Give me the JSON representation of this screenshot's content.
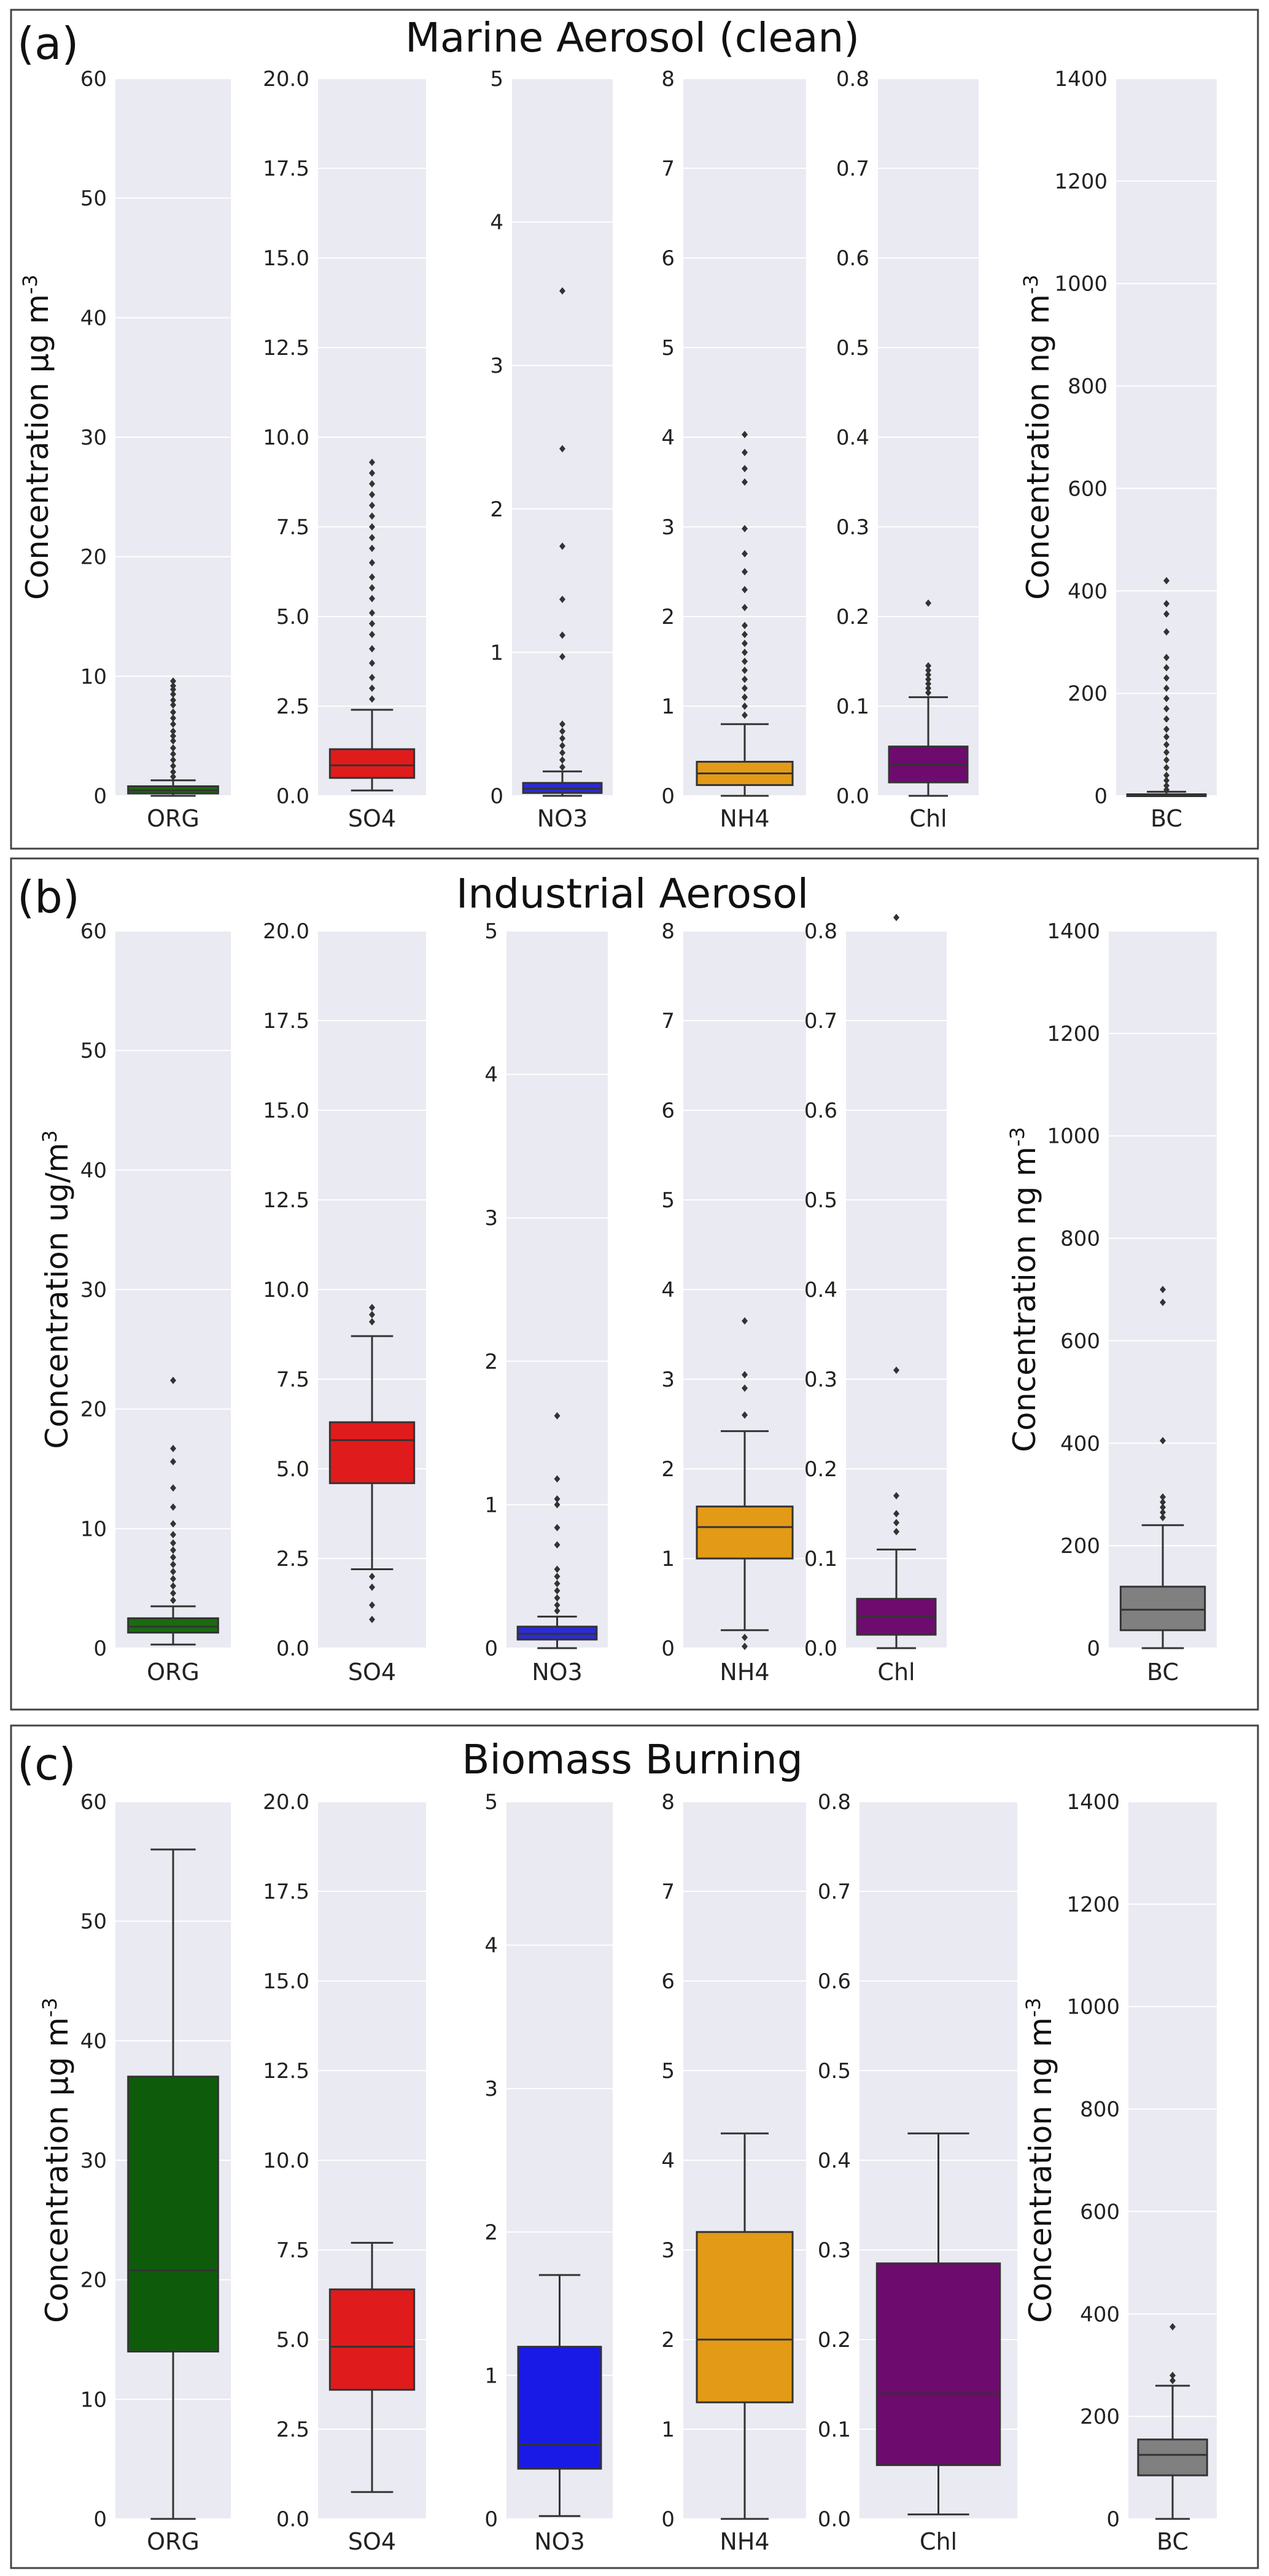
{
  "chart_data": [
    {
      "type": "box",
      "panel_letter": "(a)",
      "title": "Marine Aerosol (clean)",
      "ylabel_mass": "Concentration µg m",
      "ylabel_mass_sup": "-3",
      "ylabel_bc": "Concentration ng m",
      "ylabel_bc_sup": "-3",
      "subplots": [
        {
          "category": "ORG",
          "color": "#1b6b10",
          "ylim": [
            0,
            60
          ],
          "ticks": [
            "0",
            "10",
            "20",
            "30",
            "40",
            "50",
            "60"
          ],
          "box": {
            "whisker_low": 0,
            "q1": 0.2,
            "median": 0.45,
            "q3": 0.8,
            "whisker_high": 1.3
          },
          "outliers": [
            1.6,
            2.0,
            2.5,
            3.0,
            3.5,
            4.0,
            4.6,
            5.0,
            5.4,
            6.0,
            6.5,
            7.0,
            7.6,
            8.0,
            8.5,
            8.9,
            9.2,
            9.6
          ]
        },
        {
          "category": "SO4",
          "color": "#e01b1b",
          "ylim": [
            0,
            20
          ],
          "ticks": [
            "0.0",
            "2.5",
            "5.0",
            "7.5",
            "10.0",
            "12.5",
            "15.0",
            "17.5",
            "20.0"
          ],
          "box": {
            "whisker_low": 0.15,
            "q1": 0.5,
            "median": 0.85,
            "q3": 1.3,
            "whisker_high": 2.4
          },
          "outliers": [
            2.7,
            3.0,
            3.3,
            3.7,
            4.1,
            4.5,
            4.8,
            5.1,
            5.5,
            5.8,
            6.1,
            6.5,
            6.9,
            7.2,
            7.5,
            7.8,
            8.1,
            8.4,
            8.7,
            9.0,
            9.3
          ]
        },
        {
          "category": "NO3",
          "color": "#2b2bd6",
          "ylim": [
            0,
            5
          ],
          "ticks": [
            "0",
            "1",
            "2",
            "3",
            "4",
            "5"
          ],
          "box": {
            "whisker_low": 0.0,
            "q1": 0.02,
            "median": 0.05,
            "q3": 0.09,
            "whisker_high": 0.17
          },
          "outliers": [
            0.2,
            0.25,
            0.3,
            0.35,
            0.4,
            0.45,
            0.5,
            0.97,
            1.12,
            1.37,
            1.74,
            2.42,
            3.52
          ]
        },
        {
          "category": "NH4",
          "color": "#e39a17",
          "ylim": [
            0,
            8
          ],
          "ticks": [
            "0",
            "1",
            "2",
            "3",
            "4",
            "5",
            "6",
            "7",
            "8"
          ],
          "box": {
            "whisker_low": 0.0,
            "q1": 0.12,
            "median": 0.25,
            "q3": 0.38,
            "whisker_high": 0.8
          },
          "outliers": [
            0.9,
            1.0,
            1.1,
            1.2,
            1.3,
            1.4,
            1.5,
            1.6,
            1.7,
            1.8,
            1.9,
            2.1,
            2.3,
            2.5,
            2.7,
            2.98,
            3.5,
            3.65,
            3.83,
            4.03
          ]
        },
        {
          "category": "Chl",
          "color": "#6e0b6e",
          "ylim": [
            0,
            0.8
          ],
          "ticks": [
            "0.0",
            "0.1",
            "0.2",
            "0.3",
            "0.4",
            "0.5",
            "0.6",
            "0.7",
            "0.8"
          ],
          "box": {
            "whisker_low": 0.0,
            "q1": 0.015,
            "median": 0.035,
            "q3": 0.055,
            "whisker_high": 0.11
          },
          "outliers": [
            0.115,
            0.12,
            0.125,
            0.13,
            0.135,
            0.14,
            0.145,
            0.215
          ]
        },
        {
          "category": "BC",
          "color": "#808080",
          "ylim": [
            0,
            1400
          ],
          "ticks": [
            "0",
            "200",
            "400",
            "600",
            "800",
            "1000",
            "1200",
            "1400"
          ],
          "box": {
            "whisker_low": 0,
            "q1": 0,
            "median": 1,
            "q3": 3,
            "whisker_high": 8
          },
          "outliers": [
            12,
            20,
            30,
            40,
            55,
            70,
            85,
            100,
            115,
            130,
            150,
            170,
            190,
            210,
            230,
            250,
            270,
            320,
            355,
            375,
            420
          ]
        }
      ]
    },
    {
      "type": "box",
      "panel_letter": "(b)",
      "title": "Industrial Aerosol",
      "ylabel_mass": "Concentration ug/m",
      "ylabel_mass_sup": "3",
      "ylabel_bc": "Concentration ng m",
      "ylabel_bc_sup": "-3",
      "subplots": [
        {
          "category": "ORG",
          "color": "#1b6b10",
          "ylim": [
            0,
            60
          ],
          "ticks": [
            "0",
            "10",
            "20",
            "30",
            "40",
            "50",
            "60"
          ],
          "box": {
            "whisker_low": 0.3,
            "q1": 1.3,
            "median": 1.8,
            "q3": 2.5,
            "whisker_high": 3.5
          },
          "outliers": [
            4.0,
            4.6,
            5.2,
            5.8,
            6.4,
            7.0,
            7.6,
            8.2,
            8.8,
            9.5,
            10.4,
            11.8,
            13.4,
            15.6,
            16.7,
            22.4
          ]
        },
        {
          "category": "SO4",
          "color": "#e01b1b",
          "ylim": [
            0,
            20
          ],
          "ticks": [
            "0.0",
            "2.5",
            "5.0",
            "7.5",
            "10.0",
            "12.5",
            "15.0",
            "17.5",
            "20.0"
          ],
          "box": {
            "whisker_low": 2.2,
            "q1": 4.6,
            "median": 5.8,
            "q3": 6.3,
            "whisker_high": 8.7
          },
          "outliers": [
            0.8,
            1.2,
            1.7,
            2.0,
            9.1,
            9.3,
            9.5
          ]
        },
        {
          "category": "NO3",
          "color": "#2b2bd6",
          "ylim": [
            0,
            5
          ],
          "ticks": [
            "0",
            "1",
            "2",
            "3",
            "4",
            "5"
          ],
          "box": {
            "whisker_low": 0.0,
            "q1": 0.06,
            "median": 0.1,
            "q3": 0.15,
            "whisker_high": 0.22
          },
          "outliers": [
            0.26,
            0.3,
            0.35,
            0.4,
            0.45,
            0.5,
            0.55,
            0.72,
            0.84,
            1.0,
            1.04,
            1.18,
            1.62
          ]
        },
        {
          "category": "NH4",
          "color": "#e39a17",
          "ylim": [
            0,
            8
          ],
          "ticks": [
            "0",
            "1",
            "2",
            "3",
            "4",
            "5",
            "6",
            "7",
            "8"
          ],
          "box": {
            "whisker_low": 0.2,
            "q1": 1.0,
            "median": 1.35,
            "q3": 1.58,
            "whisker_high": 2.42
          },
          "outliers": [
            0.02,
            0.12,
            2.6,
            2.9,
            3.05,
            3.65
          ]
        },
        {
          "category": "Chl",
          "color": "#6e0b6e",
          "ylim": [
            0,
            0.8
          ],
          "ticks": [
            "0.0",
            "0.1",
            "0.2",
            "0.3",
            "0.4",
            "0.5",
            "0.6",
            "0.7",
            "0.8"
          ],
          "box": {
            "whisker_low": 0.0,
            "q1": 0.015,
            "median": 0.035,
            "q3": 0.055,
            "whisker_high": 0.11
          },
          "outliers": [
            0.13,
            0.14,
            0.15,
            0.17,
            0.31,
            0.815
          ]
        },
        {
          "category": "BC",
          "color": "#808080",
          "ylim": [
            0,
            1400
          ],
          "ticks": [
            "0",
            "200",
            "400",
            "600",
            "800",
            "1000",
            "1200",
            "1400"
          ],
          "box": {
            "whisker_low": 0,
            "q1": 35,
            "median": 75,
            "q3": 120,
            "whisker_high": 240
          },
          "outliers": [
            255,
            265,
            275,
            285,
            295,
            405,
            675,
            700
          ]
        }
      ]
    },
    {
      "type": "box",
      "panel_letter": "(c)",
      "title": "Biomass Burning",
      "ylabel_mass": "Concentration µg m",
      "ylabel_mass_sup": "-3",
      "ylabel_bc": "Concentration ng m",
      "ylabel_bc_sup": "-3",
      "subplots": [
        {
          "category": "ORG",
          "color": "#0f5b0c",
          "ylim": [
            0,
            60
          ],
          "ticks": [
            "0",
            "10",
            "20",
            "30",
            "40",
            "50",
            "60"
          ],
          "box": {
            "whisker_low": 0,
            "q1": 14,
            "median": 20.8,
            "q3": 37,
            "whisker_high": 56
          },
          "outliers": []
        },
        {
          "category": "SO4",
          "color": "#e01b1b",
          "ylim": [
            0,
            20
          ],
          "ticks": [
            "0.0",
            "2.5",
            "5.0",
            "7.5",
            "10.0",
            "12.5",
            "15.0",
            "17.5",
            "20.0"
          ],
          "box": {
            "whisker_low": 0.75,
            "q1": 3.6,
            "median": 4.8,
            "q3": 6.4,
            "whisker_high": 7.7
          },
          "outliers": []
        },
        {
          "category": "NO3",
          "color": "#1a1ae6",
          "ylim": [
            0,
            5
          ],
          "ticks": [
            "0",
            "1",
            "2",
            "3",
            "4",
            "5"
          ],
          "box": {
            "whisker_low": 0.02,
            "q1": 0.35,
            "median": 0.52,
            "q3": 1.2,
            "whisker_high": 1.7
          },
          "outliers": []
        },
        {
          "category": "NH4",
          "color": "#e39a17",
          "ylim": [
            0,
            8
          ],
          "ticks": [
            "0",
            "1",
            "2",
            "3",
            "4",
            "5",
            "6",
            "7",
            "8"
          ],
          "box": {
            "whisker_low": 0.0,
            "q1": 1.3,
            "median": 2.0,
            "q3": 3.2,
            "whisker_high": 4.3
          },
          "outliers": []
        },
        {
          "category": "Chl",
          "color": "#6e0b6e",
          "ylim": [
            0,
            0.8
          ],
          "ticks": [
            "0.0",
            "0.1",
            "0.2",
            "0.3",
            "0.4",
            "0.5",
            "0.6",
            "0.7",
            "0.8"
          ],
          "box": {
            "whisker_low": 0.005,
            "q1": 0.06,
            "median": 0.14,
            "q3": 0.285,
            "whisker_high": 0.43
          },
          "outliers": []
        },
        {
          "category": "BC",
          "color": "#808080",
          "ylim": [
            0,
            1400
          ],
          "ticks": [
            "0",
            "200",
            "400",
            "600",
            "800",
            "1000",
            "1200",
            "1400"
          ],
          "box": {
            "whisker_low": 0,
            "q1": 85,
            "median": 125,
            "q3": 155,
            "whisker_high": 260
          },
          "outliers": [
            270,
            280,
            375
          ]
        }
      ]
    }
  ]
}
